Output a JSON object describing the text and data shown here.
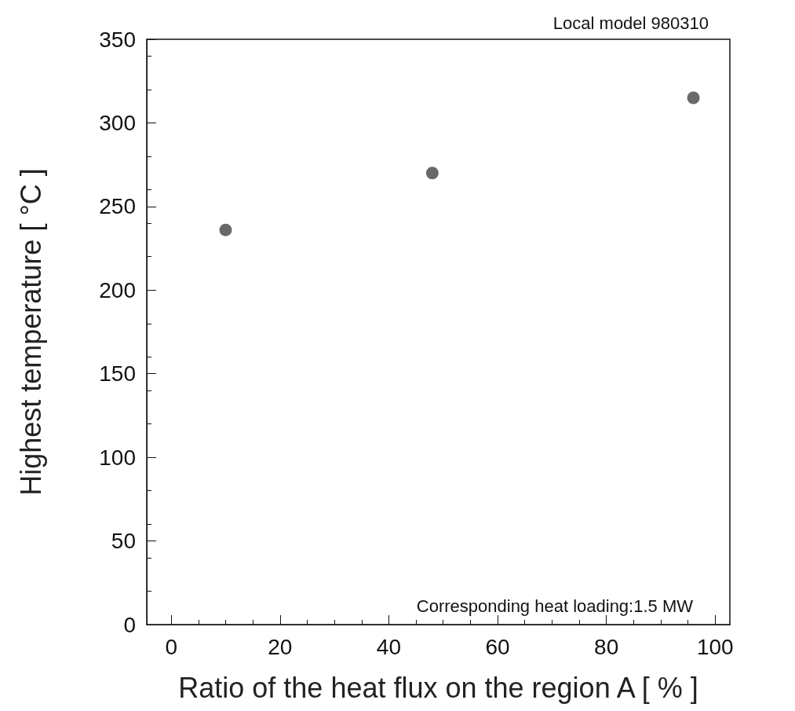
{
  "chart_data": {
    "type": "scatter",
    "xlabel": "Ratio of the heat flux on the region A [ % ]",
    "ylabel": "Highest temperature [ °C ]",
    "annotations": [
      "Local model 980310",
      "Corresponding heat loading:1.5 MW"
    ],
    "x": [
      10,
      48,
      96
    ],
    "series": [
      {
        "color": "#444444",
        "values": [
          236,
          270,
          315
        ]
      }
    ],
    "xlim": [
      -4.5,
      102.7
    ],
    "xticks": [
      0,
      20,
      40,
      60,
      80,
      100
    ],
    "ylim": [
      0,
      350
    ],
    "yticks": [
      0,
      50,
      100,
      150,
      200,
      250,
      300,
      350
    ],
    "grid": false,
    "marker": "circle"
  }
}
